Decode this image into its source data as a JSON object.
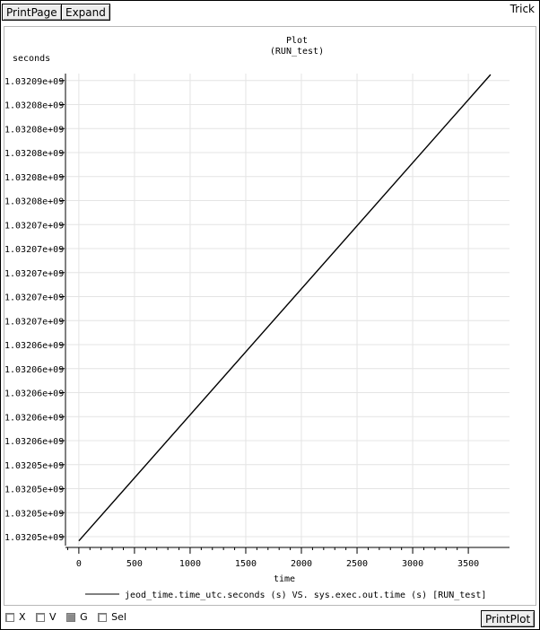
{
  "toolbar": {
    "print_page": "PrintPage",
    "expand": "Expand",
    "brand": "Trick"
  },
  "footer": {
    "toggles": [
      {
        "label": "X",
        "checked": false
      },
      {
        "label": "V",
        "checked": false
      },
      {
        "label": "G",
        "checked": true
      },
      {
        "label": "Sel",
        "checked": false
      }
    ],
    "print_plot": "PrintPlot"
  },
  "colors": {
    "line": "#000000",
    "grid": "#e4e4e4",
    "frame": "#b8b8b8"
  },
  "chart_data": {
    "type": "line",
    "title": "Plot",
    "subtitle": "(RUN_test)",
    "xlabel": "time",
    "ylabel": "seconds",
    "xlim": [
      -120,
      3870
    ],
    "ylim": [
      1.0320445,
      1.0320941
    ],
    "x_ticks": [
      0,
      500,
      1000,
      1500,
      2000,
      2500,
      3000,
      3500
    ],
    "y_tick_labels": [
      "1.03205e+09",
      "1.03205e+09",
      "1.03205e+09",
      "1.03205e+09",
      "1.03206e+09",
      "1.03206e+09",
      "1.03206e+09",
      "1.03206e+09",
      "1.03206e+09",
      "1.03207e+09",
      "1.03207e+09",
      "1.03207e+09",
      "1.03207e+09",
      "1.03207e+09",
      "1.03208e+09",
      "1.03208e+09",
      "1.03208e+09",
      "1.03208e+09",
      "1.03208e+09",
      "1.03209e+09"
    ],
    "grid": true,
    "legend_position": "bottom",
    "series": [
      {
        "name": "jeod_time.time_utc.seconds (s) VS. sys.exec.out.time (s) [RUN_test]",
        "x": [
          0,
          3700
        ],
        "y": [
          1.032045,
          1.032094
        ]
      }
    ]
  }
}
